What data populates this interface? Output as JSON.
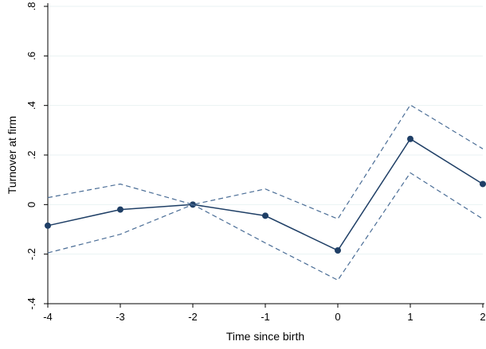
{
  "chart_data": {
    "type": "line",
    "title": "",
    "xlabel": "Time since birth",
    "ylabel": "Turnover at firm",
    "xlim": [
      -4,
      2
    ],
    "ylim": [
      -0.4,
      0.8
    ],
    "x_ticks": [
      -4,
      -3,
      -2,
      -1,
      0,
      1,
      2
    ],
    "x_tick_labels": [
      "-4",
      "-3",
      "-2",
      "-1",
      "0",
      "1",
      "2"
    ],
    "y_ticks": [
      -0.4,
      -0.2,
      0,
      0.2,
      0.4,
      0.6,
      0.8
    ],
    "y_tick_labels": [
      "-.4",
      "-.2",
      "0",
      ".2",
      ".4",
      ".6",
      ".8"
    ],
    "grid": "horizontal",
    "legend": "none",
    "series": [
      {
        "role": "estimate",
        "style": "solid-with-markers",
        "color": "#1f3f66",
        "x": [
          -4,
          -3,
          -2,
          -1,
          0,
          1,
          2
        ],
        "y": [
          -0.085,
          -0.02,
          0.0,
          -0.045,
          -0.185,
          0.265,
          0.083
        ]
      },
      {
        "role": "upper-ci",
        "style": "dashed",
        "color": "#4a6d96",
        "x": [
          -4,
          -3,
          -2,
          -1,
          0,
          1,
          2
        ],
        "y": [
          0.028,
          0.083,
          0.0,
          0.063,
          -0.058,
          0.402,
          0.225
        ]
      },
      {
        "role": "lower-ci",
        "style": "dashed",
        "color": "#4a6d96",
        "x": [
          -4,
          -3,
          -2,
          -1,
          0,
          1,
          2
        ],
        "y": [
          -0.195,
          -0.12,
          0.0,
          -0.155,
          -0.305,
          0.128,
          -0.058
        ]
      }
    ]
  }
}
